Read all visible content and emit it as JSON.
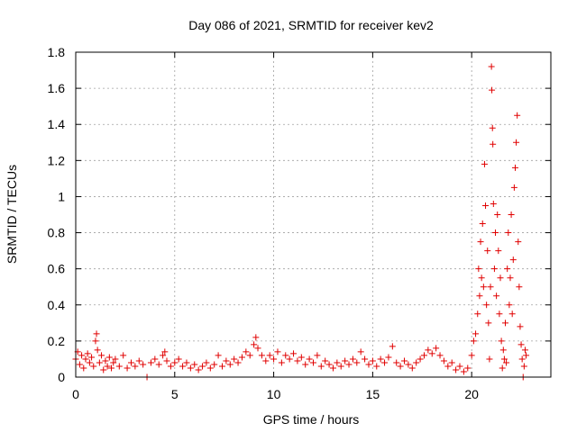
{
  "chart_data": {
    "type": "scatter",
    "title": "Day 086 of 2021, SRMTID for receiver kev2",
    "xlabel": "GPS time / hours",
    "ylabel": "SRMTID / TECUs",
    "xlim": [
      0,
      24
    ],
    "ylim": [
      0,
      1.8
    ],
    "x_ticks": [
      0,
      5,
      10,
      15,
      20
    ],
    "x_tick_labels": [
      "0",
      "5",
      "10",
      "15",
      "20"
    ],
    "y_ticks": [
      0,
      0.2,
      0.4,
      0.6,
      0.8,
      1.0,
      1.2,
      1.4,
      1.6,
      1.8
    ],
    "y_tick_labels": [
      "0",
      "0.2",
      "0.4",
      "0.6",
      "0.8",
      "1",
      "1.2",
      "1.4",
      "1.6",
      "1.8"
    ],
    "grid": true,
    "marker": "+",
    "color": "#e00000",
    "series": [
      {
        "name": "kev2",
        "points": [
          [
            0.0,
            0.1
          ],
          [
            0.1,
            0.14
          ],
          [
            0.2,
            0.07
          ],
          [
            0.3,
            0.12
          ],
          [
            0.4,
            0.05
          ],
          [
            0.5,
            0.1
          ],
          [
            0.6,
            0.13
          ],
          [
            0.7,
            0.08
          ],
          [
            0.8,
            0.11
          ],
          [
            0.9,
            0.06
          ],
          [
            1.0,
            0.2
          ],
          [
            1.05,
            0.24
          ],
          [
            1.1,
            0.15
          ],
          [
            1.2,
            0.08
          ],
          [
            1.3,
            0.12
          ],
          [
            1.4,
            0.04
          ],
          [
            1.5,
            0.09
          ],
          [
            1.6,
            0.06
          ],
          [
            1.7,
            0.11
          ],
          [
            1.8,
            0.05
          ],
          [
            1.9,
            0.08
          ],
          [
            2.0,
            0.1
          ],
          [
            2.2,
            0.06
          ],
          [
            2.4,
            0.12
          ],
          [
            2.6,
            0.05
          ],
          [
            2.8,
            0.08
          ],
          [
            3.0,
            0.06
          ],
          [
            3.2,
            0.09
          ],
          [
            3.4,
            0.07
          ],
          [
            3.6,
            0.0
          ],
          [
            3.8,
            0.08
          ],
          [
            4.0,
            0.1
          ],
          [
            4.2,
            0.07
          ],
          [
            4.4,
            0.12
          ],
          [
            4.5,
            0.14
          ],
          [
            4.6,
            0.09
          ],
          [
            4.8,
            0.06
          ],
          [
            5.0,
            0.08
          ],
          [
            5.2,
            0.1
          ],
          [
            5.4,
            0.06
          ],
          [
            5.6,
            0.08
          ],
          [
            5.8,
            0.05
          ],
          [
            6.0,
            0.07
          ],
          [
            6.2,
            0.04
          ],
          [
            6.4,
            0.06
          ],
          [
            6.6,
            0.08
          ],
          [
            6.8,
            0.05
          ],
          [
            7.0,
            0.07
          ],
          [
            7.2,
            0.12
          ],
          [
            7.4,
            0.06
          ],
          [
            7.6,
            0.09
          ],
          [
            7.8,
            0.07
          ],
          [
            8.0,
            0.1
          ],
          [
            8.2,
            0.08
          ],
          [
            8.4,
            0.11
          ],
          [
            8.6,
            0.14
          ],
          [
            8.8,
            0.12
          ],
          [
            9.0,
            0.18
          ],
          [
            9.1,
            0.22
          ],
          [
            9.2,
            0.16
          ],
          [
            9.4,
            0.12
          ],
          [
            9.6,
            0.09
          ],
          [
            9.8,
            0.12
          ],
          [
            10.0,
            0.1
          ],
          [
            10.2,
            0.14
          ],
          [
            10.4,
            0.08
          ],
          [
            10.6,
            0.12
          ],
          [
            10.8,
            0.1
          ],
          [
            11.0,
            0.13
          ],
          [
            11.2,
            0.09
          ],
          [
            11.4,
            0.11
          ],
          [
            11.6,
            0.07
          ],
          [
            11.8,
            0.1
          ],
          [
            12.0,
            0.08
          ],
          [
            12.2,
            0.12
          ],
          [
            12.4,
            0.06
          ],
          [
            12.6,
            0.09
          ],
          [
            12.8,
            0.07
          ],
          [
            13.0,
            0.05
          ],
          [
            13.2,
            0.08
          ],
          [
            13.4,
            0.06
          ],
          [
            13.6,
            0.09
          ],
          [
            13.8,
            0.07
          ],
          [
            14.0,
            0.1
          ],
          [
            14.2,
            0.08
          ],
          [
            14.4,
            0.14
          ],
          [
            14.6,
            0.1
          ],
          [
            14.8,
            0.07
          ],
          [
            15.0,
            0.09
          ],
          [
            15.2,
            0.06
          ],
          [
            15.4,
            0.1
          ],
          [
            15.6,
            0.08
          ],
          [
            15.8,
            0.11
          ],
          [
            16.0,
            0.17
          ],
          [
            16.2,
            0.08
          ],
          [
            16.4,
            0.06
          ],
          [
            16.6,
            0.09
          ],
          [
            16.8,
            0.07
          ],
          [
            17.0,
            0.05
          ],
          [
            17.2,
            0.08
          ],
          [
            17.4,
            0.1
          ],
          [
            17.6,
            0.12
          ],
          [
            17.8,
            0.15
          ],
          [
            18.0,
            0.13
          ],
          [
            18.2,
            0.16
          ],
          [
            18.4,
            0.12
          ],
          [
            18.6,
            0.09
          ],
          [
            18.8,
            0.06
          ],
          [
            19.0,
            0.08
          ],
          [
            19.2,
            0.04
          ],
          [
            19.4,
            0.06
          ],
          [
            19.6,
            0.03
          ],
          [
            19.8,
            0.05
          ],
          [
            20.0,
            0.12
          ],
          [
            20.1,
            0.2
          ],
          [
            20.2,
            0.24
          ],
          [
            20.3,
            0.35
          ],
          [
            20.35,
            0.6
          ],
          [
            20.4,
            0.45
          ],
          [
            20.45,
            0.75
          ],
          [
            20.5,
            0.55
          ],
          [
            20.55,
            0.85
          ],
          [
            20.6,
            0.5
          ],
          [
            20.65,
            1.18
          ],
          [
            20.7,
            0.95
          ],
          [
            20.75,
            0.4
          ],
          [
            20.8,
            0.7
          ],
          [
            20.85,
            0.3
          ],
          [
            20.9,
            0.1
          ],
          [
            20.95,
            0.5
          ],
          [
            21.0,
            1.72
          ],
          [
            21.02,
            1.59
          ],
          [
            21.05,
            1.38
          ],
          [
            21.07,
            1.29
          ],
          [
            21.1,
            0.96
          ],
          [
            21.15,
            0.6
          ],
          [
            21.2,
            0.8
          ],
          [
            21.25,
            0.45
          ],
          [
            21.3,
            0.9
          ],
          [
            21.35,
            0.7
          ],
          [
            21.4,
            0.35
          ],
          [
            21.45,
            0.55
          ],
          [
            21.5,
            0.2
          ],
          [
            21.55,
            0.05
          ],
          [
            21.6,
            0.15
          ],
          [
            21.65,
            0.1
          ],
          [
            21.7,
            0.3
          ],
          [
            21.75,
            0.08
          ],
          [
            21.8,
            0.6
          ],
          [
            21.85,
            0.8
          ],
          [
            21.9,
            0.4
          ],
          [
            21.95,
            0.55
          ],
          [
            22.0,
            0.9
          ],
          [
            22.05,
            0.35
          ],
          [
            22.1,
            0.65
          ],
          [
            22.15,
            1.05
          ],
          [
            22.2,
            1.16
          ],
          [
            22.25,
            1.3
          ],
          [
            22.3,
            1.45
          ],
          [
            22.35,
            0.75
          ],
          [
            22.4,
            0.5
          ],
          [
            22.45,
            0.28
          ],
          [
            22.5,
            0.18
          ],
          [
            22.55,
            0.1
          ],
          [
            22.6,
            0.0
          ],
          [
            22.65,
            0.06
          ],
          [
            22.7,
            0.15
          ],
          [
            22.75,
            0.12
          ]
        ]
      }
    ]
  }
}
